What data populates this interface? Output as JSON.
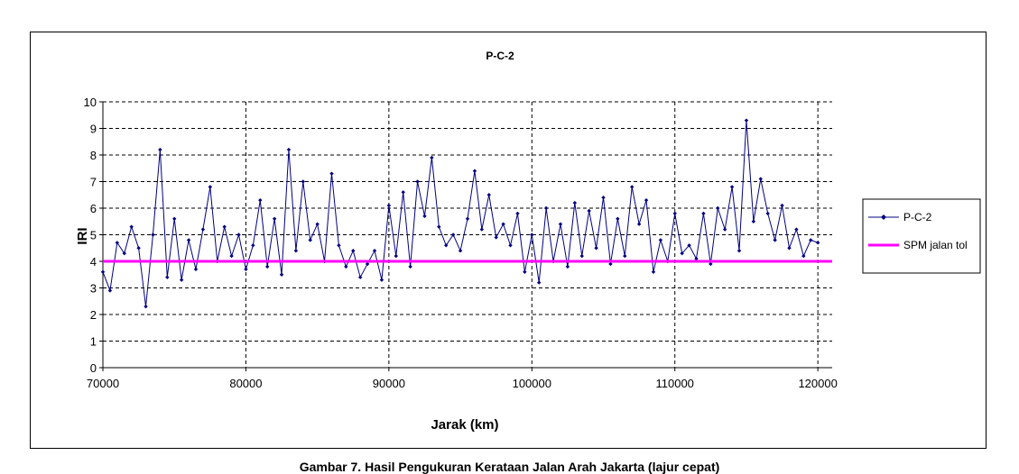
{
  "chart_data": {
    "type": "line",
    "title": "P-C-2",
    "xlabel": "Jarak (km)",
    "ylabel": "IRI",
    "xlim": [
      70000,
      121000
    ],
    "ylim": [
      0,
      10
    ],
    "xticks": [
      "70000",
      "80000",
      "90000",
      "100000",
      "110000",
      "120000"
    ],
    "yticks": [
      "0",
      "1",
      "2",
      "3",
      "4",
      "5",
      "6",
      "7",
      "8",
      "9",
      "10"
    ],
    "grid": true,
    "legend_position": "right",
    "series": [
      {
        "name": "P-C-2",
        "color": "#000080",
        "marker": "diamond",
        "x": [
          70000,
          70500,
          71000,
          71500,
          72000,
          72500,
          73000,
          73500,
          74000,
          74500,
          75000,
          75500,
          76000,
          76500,
          77000,
          77500,
          78000,
          78500,
          79000,
          79500,
          80000,
          80500,
          81000,
          81500,
          82000,
          82500,
          83000,
          83500,
          84000,
          84500,
          85000,
          85500,
          86000,
          86500,
          87000,
          87500,
          88000,
          88500,
          89000,
          89500,
          90000,
          90500,
          91000,
          91500,
          92000,
          92500,
          93000,
          93500,
          94000,
          94500,
          95000,
          95500,
          96000,
          96500,
          97000,
          97500,
          98000,
          98500,
          99000,
          99500,
          100000,
          100500,
          101000,
          101500,
          102000,
          102500,
          103000,
          103500,
          104000,
          104500,
          105000,
          105500,
          106000,
          106500,
          107000,
          107500,
          108000,
          108500,
          109000,
          109500,
          110000,
          110500,
          111000,
          111500,
          112000,
          112500,
          113000,
          113500,
          114000,
          114500,
          115000,
          115500,
          116000,
          116500,
          117000,
          117500,
          118000,
          118500,
          119000,
          119500,
          120000
        ],
        "y": [
          3.6,
          2.9,
          4.7,
          4.3,
          5.3,
          4.5,
          2.3,
          5.0,
          8.2,
          3.4,
          5.6,
          3.3,
          4.8,
          3.7,
          5.2,
          6.8,
          4.0,
          5.3,
          4.2,
          5.0,
          3.7,
          4.6,
          6.3,
          3.8,
          5.6,
          3.5,
          8.2,
          4.4,
          7.0,
          4.8,
          5.4,
          4.0,
          7.3,
          4.6,
          3.8,
          4.4,
          3.4,
          3.9,
          4.4,
          3.3,
          6.1,
          4.2,
          6.6,
          3.8,
          7.0,
          5.7,
          7.9,
          5.3,
          4.6,
          5.0,
          4.4,
          5.6,
          7.4,
          5.2,
          6.5,
          4.9,
          5.4,
          4.6,
          5.8,
          3.6,
          5.0,
          3.2,
          6.0,
          4.0,
          5.4,
          3.8,
          6.2,
          4.2,
          5.9,
          4.5,
          6.4,
          3.9,
          5.6,
          4.2,
          6.8,
          5.4,
          6.3,
          3.6,
          4.8,
          4.0,
          5.8,
          4.3,
          4.6,
          4.1,
          5.8,
          3.9,
          6.0,
          5.2,
          6.8,
          4.4,
          9.3,
          5.5,
          7.1,
          5.8,
          4.8,
          6.1,
          4.5,
          5.2,
          4.2,
          4.8,
          4.7
        ]
      },
      {
        "name": "SPM jalan tol",
        "color": "#ff00ff",
        "x": [
          70000,
          121000
        ],
        "y": [
          4,
          4
        ]
      }
    ]
  },
  "caption": "Gambar 7. Hasil Pengukuran Kerataan Jalan Arah Jakarta (lajur cepat)"
}
